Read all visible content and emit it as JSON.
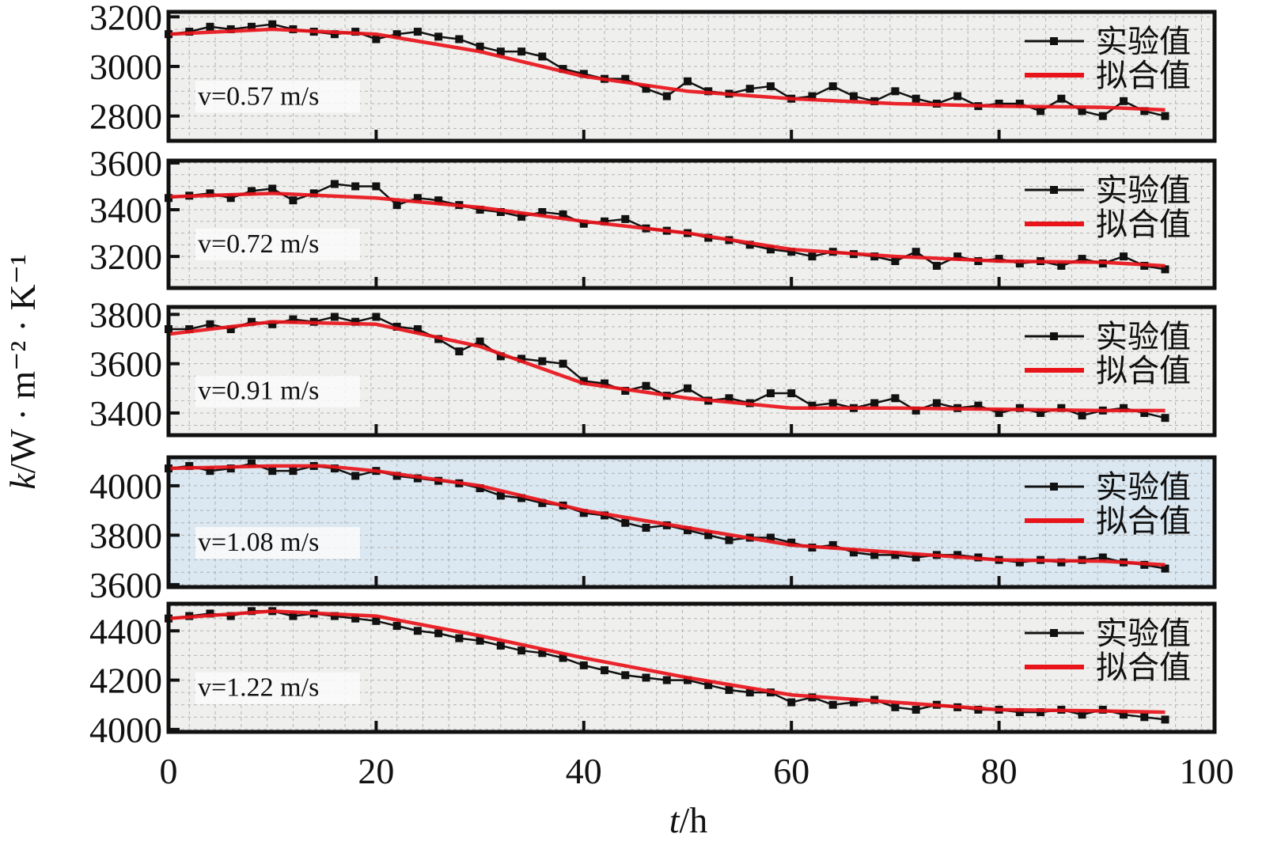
{
  "chart_data": {
    "type": "line",
    "xlabel_var": "t",
    "xlabel_unit": "/h",
    "ylabel_var": "k",
    "ylabel_unit": "/W · m⁻² · K⁻¹",
    "xlim": [
      0,
      100
    ],
    "xticks": [
      "0",
      "20",
      "40",
      "60",
      "80",
      "100"
    ],
    "legend_labels": [
      "实验值",
      "拟合值"
    ],
    "legend_position": "top-right",
    "grid": true,
    "colors": {
      "experimental": "#111111",
      "fitted": "#e8141a",
      "panel_bg": "#efefed",
      "panel_bg_blue": "#dbe8f1"
    },
    "panels": [
      {
        "label": "v=0.57 m/s",
        "ylim": [
          2700,
          3220
        ],
        "yticks": [
          2800,
          3000,
          3200
        ],
        "experimental": {
          "x_step": 2,
          "values": [
            3130,
            3140,
            3160,
            3150,
            3160,
            3170,
            3150,
            3140,
            3130,
            3140,
            3110,
            3130,
            3140,
            3120,
            3110,
            3080,
            3060,
            3060,
            3040,
            2990,
            2970,
            2950,
            2950,
            2910,
            2880,
            2940,
            2900,
            2890,
            2910,
            2920,
            2870,
            2880,
            2920,
            2880,
            2860,
            2900,
            2870,
            2850,
            2880,
            2840,
            2850,
            2850,
            2820,
            2870,
            2820,
            2800,
            2860,
            2820,
            2800
          ]
        },
        "fitted": {
          "x": [
            0,
            10,
            20,
            30,
            40,
            50,
            60,
            70,
            80,
            90,
            96
          ],
          "values": [
            3130,
            3150,
            3130,
            3060,
            2960,
            2900,
            2870,
            2850,
            2840,
            2835,
            2825
          ]
        }
      },
      {
        "label": "v=0.72 m/s",
        "ylim": [
          3065,
          3610
        ],
        "yticks": [
          3200,
          3400,
          3600
        ],
        "experimental": {
          "x_step": 2,
          "values": [
            3450,
            3460,
            3470,
            3450,
            3480,
            3490,
            3440,
            3470,
            3510,
            3500,
            3500,
            3420,
            3450,
            3440,
            3420,
            3400,
            3390,
            3370,
            3390,
            3380,
            3340,
            3350,
            3360,
            3320,
            3310,
            3300,
            3280,
            3270,
            3250,
            3230,
            3220,
            3200,
            3220,
            3210,
            3200,
            3180,
            3220,
            3160,
            3200,
            3180,
            3190,
            3170,
            3180,
            3160,
            3190,
            3170,
            3200,
            3160,
            3145
          ]
        },
        "fitted": {
          "x": [
            0,
            10,
            20,
            30,
            40,
            50,
            60,
            70,
            80,
            90,
            96
          ],
          "values": [
            3455,
            3470,
            3450,
            3410,
            3350,
            3300,
            3230,
            3200,
            3180,
            3175,
            3160
          ]
        }
      },
      {
        "label": "v=0.91 m/s",
        "ylim": [
          3310,
          3830
        ],
        "yticks": [
          3400,
          3600,
          3800
        ],
        "experimental": {
          "x_step": 2,
          "values": [
            3740,
            3740,
            3760,
            3740,
            3770,
            3760,
            3780,
            3770,
            3790,
            3770,
            3790,
            3750,
            3740,
            3700,
            3650,
            3690,
            3630,
            3620,
            3610,
            3600,
            3530,
            3520,
            3490,
            3510,
            3470,
            3500,
            3450,
            3460,
            3440,
            3480,
            3480,
            3430,
            3440,
            3420,
            3440,
            3460,
            3410,
            3440,
            3420,
            3430,
            3400,
            3420,
            3400,
            3420,
            3390,
            3410,
            3420,
            3400,
            3380
          ]
        },
        "fitted": {
          "x": [
            0,
            10,
            20,
            30,
            40,
            50,
            60,
            70,
            80,
            90,
            96
          ],
          "values": [
            3720,
            3770,
            3760,
            3670,
            3520,
            3460,
            3420,
            3420,
            3415,
            3410,
            3410
          ]
        }
      },
      {
        "label": "v=1.08 m/s",
        "ylim": [
          3590,
          4115
        ],
        "yticks": [
          3600,
          3800,
          4000
        ],
        "experimental": {
          "x_step": 2,
          "values": [
            4070,
            4080,
            4060,
            4070,
            4090,
            4060,
            4060,
            4080,
            4070,
            4040,
            4060,
            4040,
            4030,
            4020,
            4010,
            3990,
            3960,
            3950,
            3930,
            3920,
            3890,
            3880,
            3850,
            3830,
            3840,
            3820,
            3800,
            3780,
            3790,
            3790,
            3770,
            3750,
            3760,
            3730,
            3720,
            3720,
            3710,
            3720,
            3720,
            3710,
            3700,
            3690,
            3700,
            3690,
            3700,
            3710,
            3690,
            3680,
            3665
          ]
        },
        "fitted": {
          "x": [
            0,
            10,
            15,
            20,
            30,
            40,
            50,
            60,
            70,
            80,
            90,
            96
          ],
          "values": [
            4070,
            4080,
            4080,
            4060,
            4000,
            3900,
            3830,
            3760,
            3730,
            3700,
            3695,
            3680
          ]
        }
      },
      {
        "label": "v=1.22 m/s",
        "ylim": [
          3990,
          4510
        ],
        "yticks": [
          4000,
          4200,
          4400
        ],
        "experimental": {
          "x_step": 2,
          "values": [
            4450,
            4460,
            4470,
            4460,
            4480,
            4480,
            4460,
            4470,
            4460,
            4450,
            4440,
            4420,
            4400,
            4390,
            4370,
            4360,
            4340,
            4320,
            4310,
            4290,
            4260,
            4240,
            4220,
            4210,
            4200,
            4200,
            4180,
            4160,
            4150,
            4150,
            4110,
            4130,
            4100,
            4110,
            4120,
            4090,
            4080,
            4100,
            4090,
            4080,
            4080,
            4070,
            4070,
            4080,
            4060,
            4080,
            4060,
            4050,
            4040
          ]
        },
        "fitted": {
          "x": [
            0,
            10,
            20,
            30,
            40,
            50,
            60,
            70,
            80,
            90,
            96
          ],
          "values": [
            4450,
            4480,
            4460,
            4380,
            4290,
            4210,
            4140,
            4110,
            4080,
            4075,
            4070
          ]
        }
      }
    ]
  }
}
